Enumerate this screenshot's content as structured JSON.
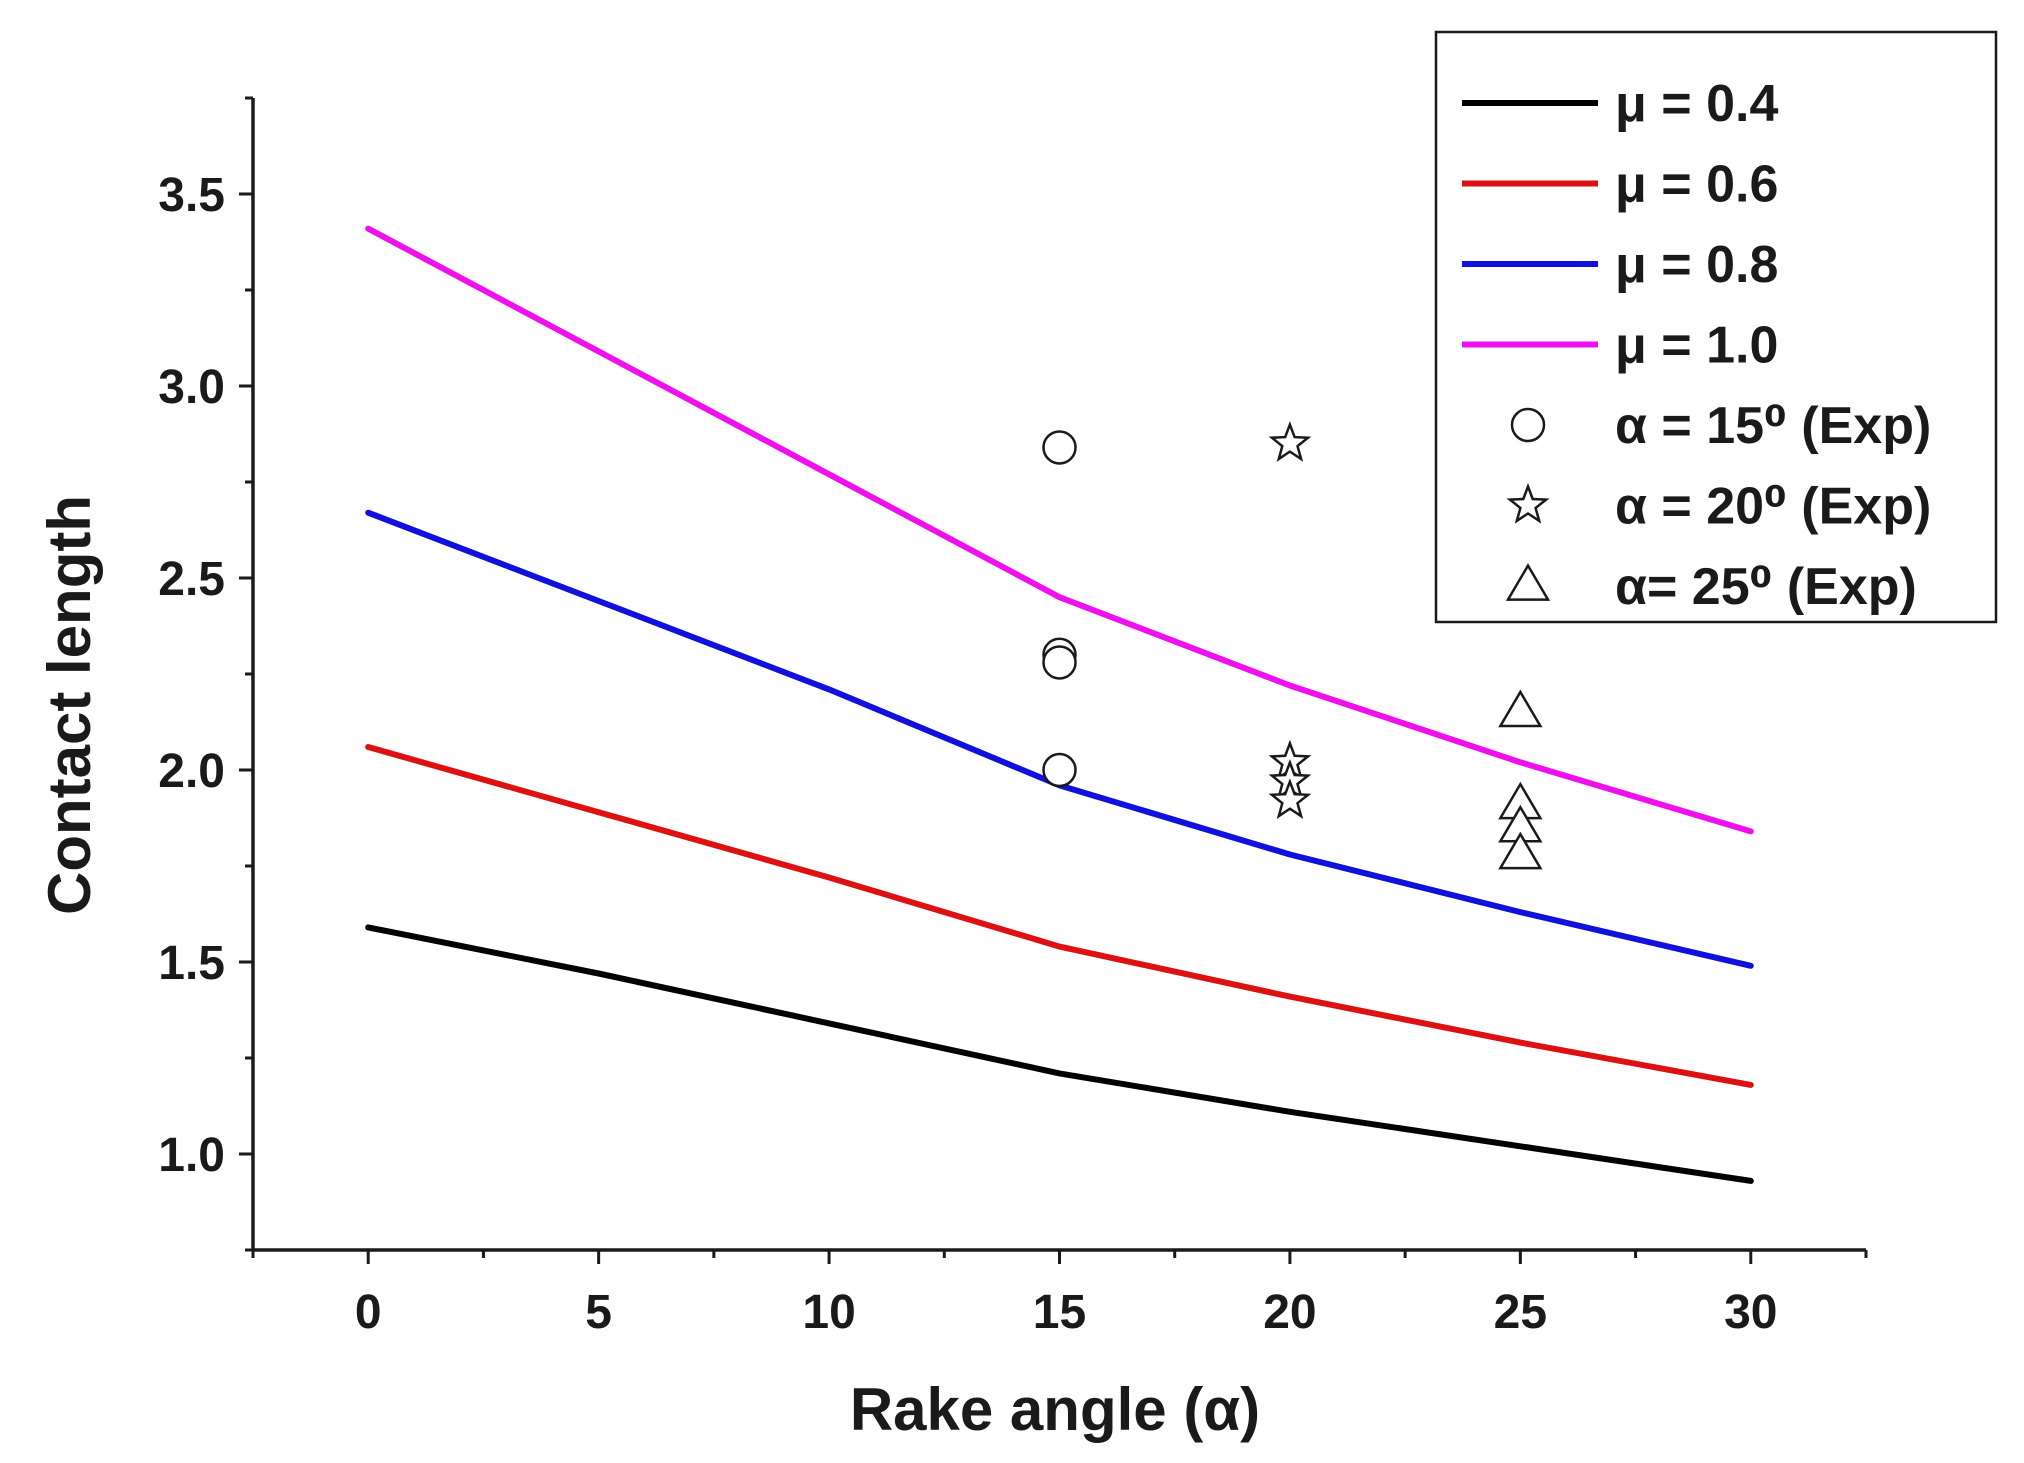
{
  "chart_data": {
    "type": "line",
    "xlabel": "Rake angle (α)",
    "ylabel": "Contact length",
    "xlim": [
      -2.5,
      32.5
    ],
    "ylim": [
      0.75,
      3.75
    ],
    "x_ticks": [
      0,
      5,
      10,
      15,
      20,
      25,
      30
    ],
    "x_tick_labels": [
      "0",
      "5",
      "10",
      "15",
      "20",
      "25",
      "30"
    ],
    "y_ticks": [
      1.0,
      1.5,
      2.0,
      2.5,
      3.0,
      3.5
    ],
    "y_tick_labels": [
      "1.0",
      "1.5",
      "2.0",
      "2.5",
      "3.0",
      "3.5"
    ],
    "legend_position": "top-right",
    "series": [
      {
        "name": "μ = 0.4",
        "mu": "0.4",
        "color": "#000000",
        "x": [
          0,
          5,
          10,
          15,
          20,
          25,
          30
        ],
        "values": [
          1.59,
          1.47,
          1.34,
          1.21,
          1.11,
          1.02,
          0.93
        ]
      },
      {
        "name": "μ = 0.6",
        "mu": "0.6",
        "color": "#dd1111",
        "x": [
          0,
          5,
          10,
          15,
          20,
          25,
          30
        ],
        "values": [
          2.06,
          1.89,
          1.72,
          1.54,
          1.41,
          1.29,
          1.18
        ]
      },
      {
        "name": "μ = 0.8",
        "mu": "0.8",
        "color": "#1111dd",
        "x": [
          0,
          5,
          10,
          15,
          20,
          25,
          30
        ],
        "values": [
          2.67,
          2.44,
          2.21,
          1.96,
          1.78,
          1.63,
          1.49
        ]
      },
      {
        "name": "μ = 1.0",
        "mu": "1.0",
        "color": "#ee11ee",
        "x": [
          0,
          5,
          10,
          15,
          20,
          25,
          30
        ],
        "values": [
          3.41,
          3.09,
          2.77,
          2.45,
          2.22,
          2.02,
          1.84
        ]
      }
    ],
    "experimental": [
      {
        "name": "α = 15⁰ (Exp)",
        "alpha": "15",
        "marker": "circle",
        "x": [
          15,
          15,
          15,
          15
        ],
        "values": [
          2.84,
          2.3,
          2.28,
          2.0
        ]
      },
      {
        "name": "α = 20⁰ (Exp)",
        "alpha": "20",
        "marker": "star",
        "x": [
          20,
          20,
          20,
          20
        ],
        "values": [
          2.85,
          2.02,
          1.97,
          1.92
        ]
      },
      {
        "name": "α= 25⁰ (Exp)",
        "alpha": "25",
        "marker": "triangle",
        "x": [
          25,
          25,
          25,
          25
        ],
        "values": [
          2.15,
          1.91,
          1.85,
          1.78
        ]
      }
    ]
  }
}
